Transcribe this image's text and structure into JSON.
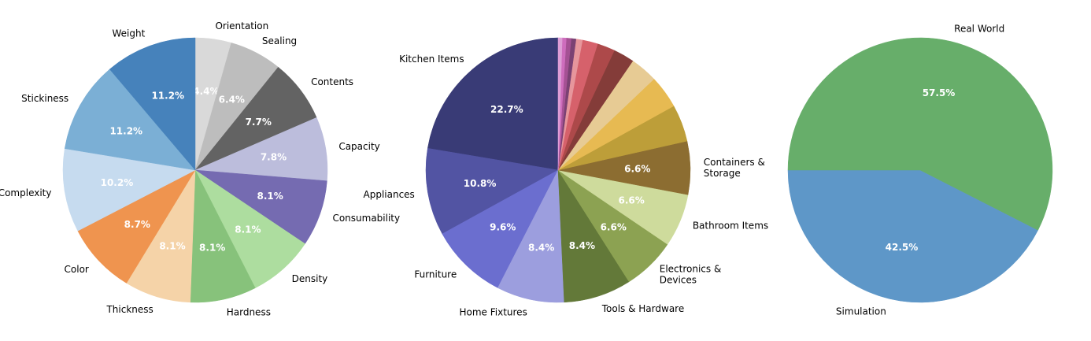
{
  "chart_data": [
    {
      "type": "pie",
      "start_angle_deg": 90,
      "direction": "clockwise",
      "slices": [
        {
          "label": "Orientation",
          "value": 4.4,
          "pct_label": "4.4%",
          "color": "#d9d9d9"
        },
        {
          "label": "Sealing",
          "value": 6.4,
          "pct_label": "6.4%",
          "color": "#bdbdbd"
        },
        {
          "label": "Contents",
          "value": 7.7,
          "pct_label": "7.7%",
          "color": "#636363"
        },
        {
          "label": "Capacity",
          "value": 7.8,
          "pct_label": "7.8%",
          "color": "#bcbddc"
        },
        {
          "label": "Consumability",
          "value": 8.1,
          "pct_label": "8.1%",
          "color": "#756bb1"
        },
        {
          "label": "Density",
          "value": 8.1,
          "pct_label": "8.1%",
          "color": "#addd9f"
        },
        {
          "label": "Hardness",
          "value": 8.1,
          "pct_label": "8.1%",
          "color": "#87c27b"
        },
        {
          "label": "Thickness",
          "value": 8.1,
          "pct_label": "8.1%",
          "color": "#f5d3a8"
        },
        {
          "label": "Color",
          "value": 8.7,
          "pct_label": "8.7%",
          "color": "#ef944f"
        },
        {
          "label": "Complexity",
          "value": 10.2,
          "pct_label": "10.2%",
          "color": "#c6dbef"
        },
        {
          "label": "Stickiness",
          "value": 11.2,
          "pct_label": "11.2%",
          "color": "#7bafd5"
        },
        {
          "label": "Weight",
          "value": 11.2,
          "pct_label": "11.2%",
          "color": "#4682bb"
        }
      ]
    },
    {
      "type": "pie",
      "start_angle_deg": 90,
      "direction": "counterclockwise",
      "slices": [
        {
          "label": "Kitchen Items",
          "value": 22.7,
          "pct_label": "22.7%",
          "color": "#393b76"
        },
        {
          "label": "Appliances",
          "value": 10.8,
          "pct_label": "10.8%",
          "color": "#5254a3"
        },
        {
          "label": "Furniture",
          "value": 9.6,
          "pct_label": "9.6%",
          "color": "#6b6ecf"
        },
        {
          "label": "Home Fixtures",
          "value": 8.4,
          "pct_label": "8.4%",
          "color": "#9c9ede"
        },
        {
          "label": "Tools & Hardware",
          "value": 8.4,
          "pct_label": "8.4%",
          "color": "#637939"
        },
        {
          "label": "Electronics & Devices",
          "value": 6.6,
          "pct_label": "6.6%",
          "color": "#8ca252"
        },
        {
          "label": "Bathroom Items",
          "value": 6.6,
          "pct_label": "6.6%",
          "color": "#cedb9c"
        },
        {
          "label": "Containers & Storage",
          "value": 6.6,
          "pct_label": "6.6%",
          "color": "#8c6d31"
        },
        {
          "label": "",
          "value": 4.6,
          "pct_label": "",
          "color": "#bd9e39"
        },
        {
          "label": "",
          "value": 4.1,
          "pct_label": "",
          "color": "#e7ba52"
        },
        {
          "label": "",
          "value": 3.4,
          "pct_label": "",
          "color": "#e7cb94"
        },
        {
          "label": "",
          "value": 2.6,
          "pct_label": "",
          "color": "#843c39"
        },
        {
          "label": "",
          "value": 2.2,
          "pct_label": "",
          "color": "#ad494a"
        },
        {
          "label": "",
          "value": 1.9,
          "pct_label": "",
          "color": "#d6616b"
        },
        {
          "label": "",
          "value": 0.8,
          "pct_label": "",
          "color": "#e7969c"
        },
        {
          "label": "",
          "value": 0.6,
          "pct_label": "",
          "color": "#7b4173"
        },
        {
          "label": "",
          "value": 0.6,
          "pct_label": "",
          "color": "#a55194"
        },
        {
          "label": "",
          "value": 0.5,
          "pct_label": "",
          "color": "#ce6dbd"
        },
        {
          "label": "",
          "value": 0.5,
          "pct_label": "",
          "color": "#de9ed6"
        }
      ]
    },
    {
      "type": "pie",
      "start_angle_deg": 180,
      "direction": "counterclockwise",
      "slices": [
        {
          "label": "Simulation",
          "value": 42.5,
          "pct_label": "42.5%",
          "color": "#5e97c8"
        },
        {
          "label": "Real World",
          "value": 57.5,
          "pct_label": "57.5%",
          "color": "#67ae6a"
        }
      ]
    }
  ]
}
